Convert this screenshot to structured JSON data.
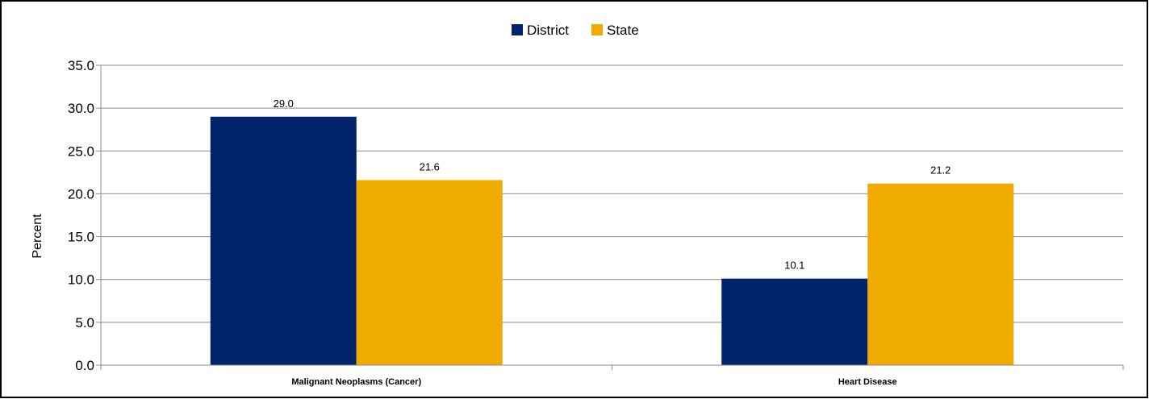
{
  "chart_data": {
    "type": "bar",
    "title": "",
    "xlabel": "",
    "ylabel": "Percent",
    "ylim": [
      0,
      35
    ],
    "ytick_step": 5,
    "ytick_format_decimals": 1,
    "grid": true,
    "legend_position": "top",
    "categories": [
      "Malignant Neoplasms (Cancer)",
      "Heart Disease"
    ],
    "series": [
      {
        "name": "District",
        "color": "#002469",
        "values": [
          29.0,
          10.1
        ]
      },
      {
        "name": "State",
        "color": "#F0AB00",
        "values": [
          21.6,
          21.2
        ]
      }
    ]
  }
}
